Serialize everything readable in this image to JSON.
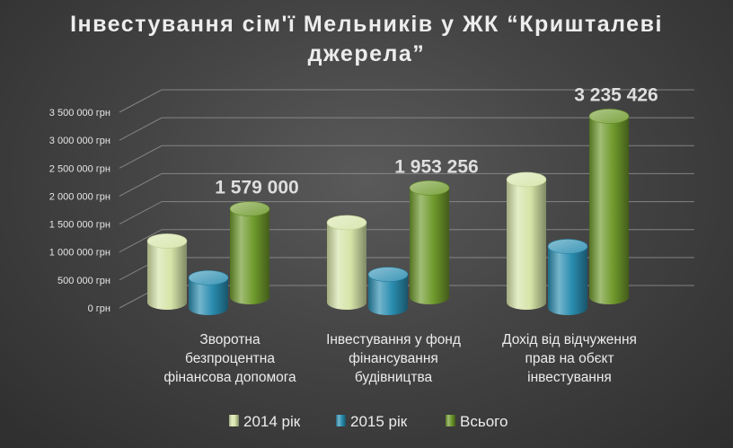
{
  "chart_data": {
    "type": "bar",
    "title": "Інвестування  сім'ї Мельників  у ЖК “Кришталеві джерела”",
    "title_lines": [
      "Інвестування  сім'ї Мельників  у ЖК “Кришталеві",
      "джерела”"
    ],
    "categories": [
      "Зворотна безпроцентна фінансова допомога",
      "Інвестування у фонд фінансування будівництва",
      "Дохід від відчуження прав на обєкт інвестування"
    ],
    "category_lines": [
      [
        "Зворотна",
        "безпроцентна",
        "фінансова допомога"
      ],
      [
        "Інвестування у фонд",
        "фінансування",
        "будівництва"
      ],
      [
        "Дохід від відчуження",
        "прав на обєкт",
        "інвестування"
      ]
    ],
    "series": [
      {
        "name": "2014 рік",
        "values": [
          1100000,
          1430000,
          2200000
        ],
        "color": "#d6e4a8"
      },
      {
        "name": "2015 рік",
        "values": [
          540000,
          600000,
          1100000
        ],
        "color": "#2a8db0"
      },
      {
        "name": "Всього",
        "values": [
          1579000,
          1953256,
          3235426
        ],
        "color": "#6f9a2c"
      }
    ],
    "data_labels": [
      {
        "category": 0,
        "series": 2,
        "text": "1 579 000"
      },
      {
        "category": 1,
        "series": 2,
        "text": "1 953 256"
      },
      {
        "category": 2,
        "series": 2,
        "text": "3 235 426"
      }
    ],
    "yticks": [
      0,
      500000,
      1000000,
      1500000,
      2000000,
      2500000,
      3000000,
      3500000
    ],
    "ytick_labels": [
      "0 грн",
      "500 000 грн",
      "1 000 000 грн",
      "1 500 000 грн",
      "2 000 000 грн",
      "2 500 000 грн",
      "3 000 000 грн",
      "3 500 000 грн"
    ],
    "ylim": [
      0,
      3500000
    ],
    "grid": true,
    "legend_position": "bottom",
    "style": "3d-cylinder"
  }
}
